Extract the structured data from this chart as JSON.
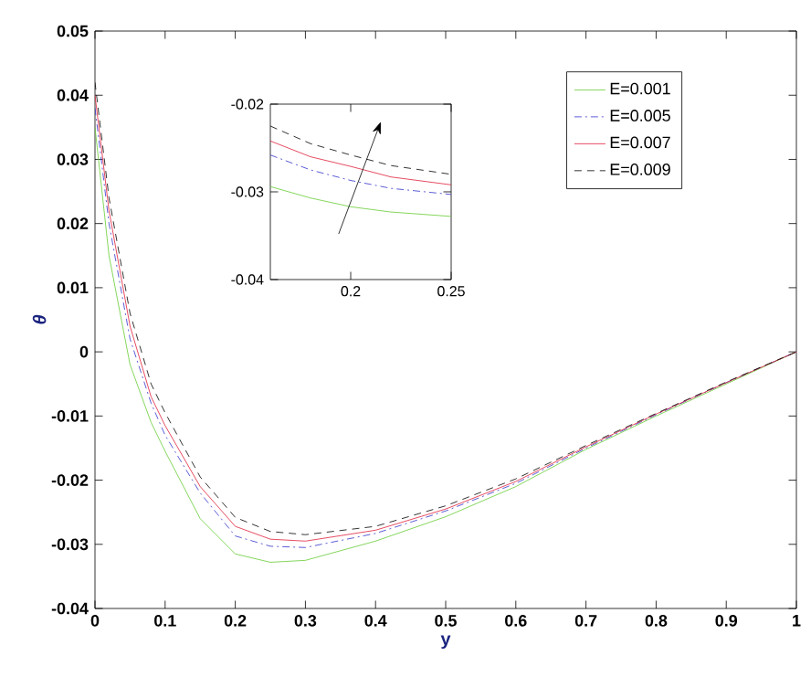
{
  "chart_data": [
    {
      "type": "line",
      "xlabel": "y",
      "ylabel": "θ",
      "xlim": [
        0,
        1
      ],
      "ylim": [
        -0.04,
        0.05
      ],
      "xticks": [
        0,
        0.1,
        0.2,
        0.3,
        0.4,
        0.5,
        0.6,
        0.7,
        0.8,
        0.9,
        1
      ],
      "yticks": [
        -0.04,
        -0.03,
        -0.02,
        -0.01,
        0,
        0.01,
        0.02,
        0.03,
        0.04,
        0.05
      ],
      "legend": "top right",
      "grid": false,
      "x": [
        0,
        0.02,
        0.05,
        0.08,
        0.1,
        0.15,
        0.2,
        0.25,
        0.3,
        0.4,
        0.5,
        0.6,
        0.7,
        0.8,
        0.9,
        1
      ],
      "series": [
        {
          "name": "E=0.001",
          "color": "#66cc33",
          "line_style": "solid",
          "values": [
            0.035,
            0.015,
            -0.002,
            -0.011,
            -0.0155,
            -0.026,
            -0.0315,
            -0.0328,
            -0.0325,
            -0.0295,
            -0.0257,
            -0.021,
            -0.0152,
            -0.01,
            -0.005,
            0
          ]
        },
        {
          "name": "E=0.005",
          "color": "#3333cc",
          "line_style": "dashdot",
          "values": [
            0.038,
            0.02,
            0.002,
            -0.008,
            -0.013,
            -0.022,
            -0.0287,
            -0.0303,
            -0.0305,
            -0.0283,
            -0.0248,
            -0.0205,
            -0.015,
            -0.0098,
            -0.0048,
            0
          ]
        },
        {
          "name": "E=0.007",
          "color": "#e0203a",
          "line_style": "solid",
          "values": [
            0.04,
            0.022,
            0.004,
            -0.007,
            -0.0115,
            -0.021,
            -0.0272,
            -0.0292,
            -0.0295,
            -0.0278,
            -0.0245,
            -0.0202,
            -0.0148,
            -0.0097,
            -0.0048,
            0
          ]
        },
        {
          "name": "E=0.009",
          "color": "#000000",
          "line_style": "dashed",
          "values": [
            0.042,
            0.024,
            0.006,
            -0.005,
            -0.0095,
            -0.0195,
            -0.0258,
            -0.028,
            -0.0285,
            -0.0272,
            -0.024,
            -0.0198,
            -0.0146,
            -0.0096,
            -0.0047,
            0
          ]
        }
      ]
    },
    {
      "type": "line",
      "xlim": [
        0.16,
        0.25
      ],
      "ylim": [
        -0.04,
        -0.02
      ],
      "xticks": [
        0.2,
        0.25
      ],
      "yticks": [
        -0.04,
        -0.03,
        -0.02
      ],
      "grid": false,
      "x": [
        0.16,
        0.18,
        0.2,
        0.22,
        0.25
      ],
      "series": [
        {
          "color": "#66cc33",
          "line_style": "solid",
          "values": [
            -0.0294,
            -0.0307,
            -0.0317,
            -0.0323,
            -0.0328
          ]
        },
        {
          "color": "#3333cc",
          "line_style": "dashdot",
          "values": [
            -0.0258,
            -0.0275,
            -0.0287,
            -0.0296,
            -0.0303
          ]
        },
        {
          "color": "#e0203a",
          "line_style": "solid",
          "values": [
            -0.0242,
            -0.026,
            -0.0271,
            -0.0283,
            -0.0292
          ]
        },
        {
          "color": "#000000",
          "line_style": "dashed",
          "values": [
            -0.0225,
            -0.0245,
            -0.0258,
            -0.027,
            -0.028
          ]
        }
      ]
    }
  ]
}
